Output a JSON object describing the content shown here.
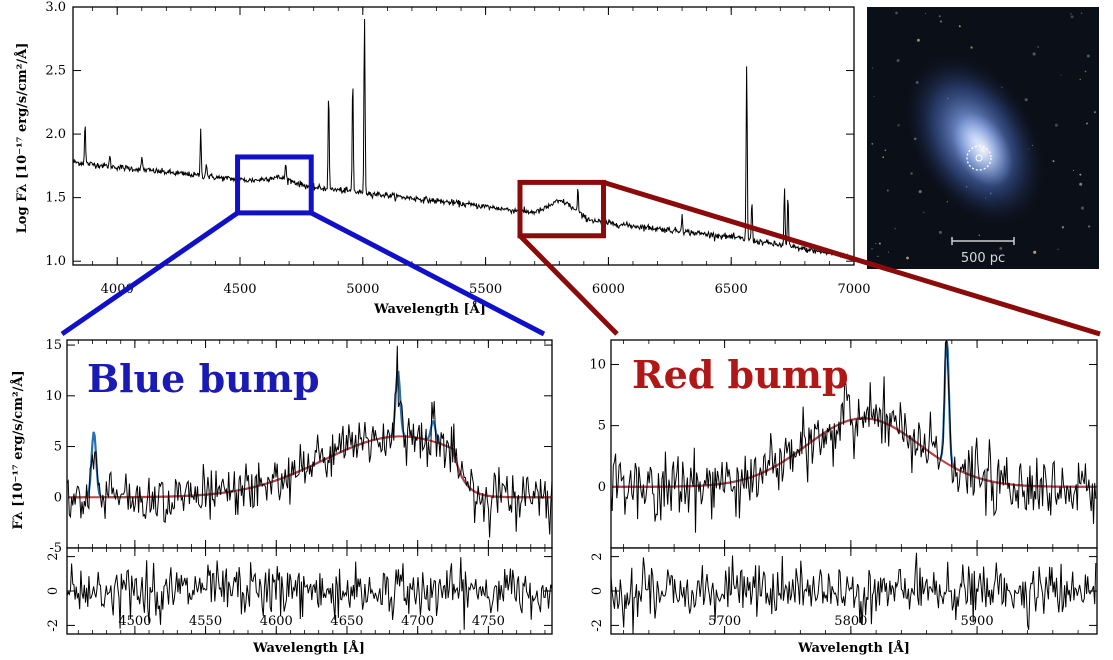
{
  "colors": {
    "blue_box": "#1010c8",
    "red_box": "#8b0a0a",
    "blue_label": "#1a1ab5",
    "red_label": "#b01818",
    "model_line": "#c04040",
    "line_fill": "#2a6fb0"
  },
  "image_panel": {
    "scale_label": "500 pc",
    "marker": "dashed-circle-aperture-icon"
  },
  "chart_data": [
    {
      "type": "line",
      "panel": "full-spectrum",
      "xlabel": "Wavelength [Å]",
      "ylabel": "Log Fλ [10⁻¹⁷ erg/s/cm²/Å]",
      "xlim": [
        3820,
        7000
      ],
      "ylim": [
        0.97,
        3.0
      ],
      "xticks": [
        4000,
        4500,
        5000,
        5500,
        6000,
        6500,
        7000
      ],
      "yticks": [
        1.0,
        1.5,
        2.0,
        2.5,
        3.0
      ],
      "ytick_labels": [
        "1.0",
        "1.5",
        "2.0",
        "2.5",
        "3.0"
      ],
      "continuum": [
        [
          3820,
          1.78
        ],
        [
          4000,
          1.74
        ],
        [
          4500,
          1.64
        ],
        [
          5000,
          1.54
        ],
        [
          5500,
          1.43
        ],
        [
          6000,
          1.3
        ],
        [
          6500,
          1.19
        ],
        [
          7000,
          1.03
        ]
      ],
      "bumps": [
        {
          "center": 4660,
          "sigma": 55,
          "height": 0.05
        },
        {
          "center": 5810,
          "sigma": 50,
          "height": 0.12
        }
      ],
      "emission_lines": [
        [
          3869,
          2.08
        ],
        [
          3970,
          1.82
        ],
        [
          4101,
          1.82
        ],
        [
          4340,
          2.03
        ],
        [
          4363,
          1.78
        ],
        [
          4686,
          1.72
        ],
        [
          4861,
          2.35
        ],
        [
          4959,
          2.45
        ],
        [
          5007,
          2.92
        ],
        [
          5876,
          1.52
        ],
        [
          6300,
          1.38
        ],
        [
          6563,
          2.55
        ],
        [
          6584,
          1.48
        ],
        [
          6717,
          1.58
        ],
        [
          6731,
          1.52
        ]
      ],
      "highlight_boxes": [
        {
          "label": "blue",
          "x": [
            4490,
            4790
          ],
          "y": [
            1.38,
            1.82
          ]
        },
        {
          "label": "red",
          "x": [
            5640,
            5980
          ],
          "y": [
            1.2,
            1.62
          ]
        }
      ]
    },
    {
      "type": "line",
      "panel": "blue-bump",
      "title": "Blue bump",
      "xlabel": "Wavelength [Å]",
      "ylabel": "Fλ [10⁻¹⁷ erg/s/cm²/Å]",
      "xlim": [
        4452,
        4795
      ],
      "ylim": [
        -5,
        15.5
      ],
      "xticks": [
        4500,
        4550,
        4600,
        4650,
        4700,
        4750
      ],
      "yticks": [
        -5,
        0,
        5,
        10,
        15
      ],
      "ytick_labels": [
        "-5",
        "0",
        "5",
        "10",
        "15"
      ],
      "model": {
        "center": 4688,
        "sigma": 55,
        "height": 6.0,
        "cutoff": 4725,
        "falloff": 8
      },
      "lines": [
        [
          4471,
          6.5
        ],
        [
          4686,
          6.5
        ],
        [
          4711,
          2.0
        ]
      ],
      "residual_ylim": [
        -2.5,
        2.5
      ],
      "residual_yticks": [
        -2,
        0,
        2
      ],
      "residual_ytick_labels": [
        "-2",
        "0",
        "2"
      ]
    },
    {
      "type": "line",
      "panel": "red-bump",
      "title": "Red bump",
      "xlabel": "Wavelength [Å]",
      "ylabel": "",
      "xlim": [
        5610,
        5995
      ],
      "ylim": [
        -5,
        12
      ],
      "xticks": [
        5700,
        5800,
        5900
      ],
      "yticks": [
        0,
        5,
        10
      ],
      "ytick_labels": [
        "0",
        "5",
        "10"
      ],
      "model": {
        "center": 5810,
        "sigma": 45,
        "height": 5.6
      },
      "lines": [
        [
          5876,
          10.5
        ]
      ],
      "residual_ylim": [
        -2.5,
        2.5
      ],
      "residual_yticks": [
        -2,
        0,
        2
      ],
      "residual_ytick_labels": [
        "-2",
        "0",
        "2"
      ]
    }
  ]
}
